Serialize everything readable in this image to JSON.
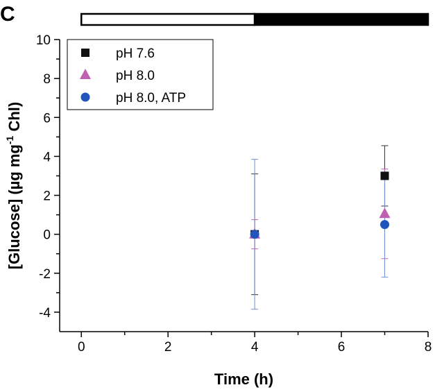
{
  "panel_label": "C",
  "chart_data": {
    "type": "scatter",
    "xlabel": "Time (h)",
    "ylabel_main": "[Glucose] (µg mg",
    "ylabel_sup": "-1",
    "ylabel_tail": " Chl)",
    "xlim": [
      -0.5,
      8
    ],
    "ylim": [
      -5,
      10
    ],
    "x_ticks": [
      0,
      2,
      4,
      6,
      8
    ],
    "y_ticks": [
      -4,
      -2,
      0,
      2,
      4,
      6,
      8,
      10
    ],
    "light_dark_bar": {
      "light_from": 0,
      "light_to": 4,
      "dark_from": 4,
      "dark_to": 8
    },
    "legend_position": "top-left",
    "series": [
      {
        "name": "pH 7.6",
        "marker": "square",
        "color": "#111111",
        "errcolor": "#333333",
        "points": [
          {
            "x": 4,
            "y": 0.0,
            "err": 3.1
          },
          {
            "x": 7,
            "y": 3.0,
            "err": 1.55
          }
        ]
      },
      {
        "name": "pH 8.0",
        "marker": "triangle",
        "color": "#c060b0",
        "errcolor": "#c060b0",
        "points": [
          {
            "x": 4,
            "y": 0.0,
            "err": 0.75
          },
          {
            "x": 7,
            "y": 1.05,
            "err": 2.3
          }
        ]
      },
      {
        "name": "pH 8.0, ATP",
        "marker": "circle",
        "color": "#2255bb",
        "errcolor": "#6f8fd6",
        "points": [
          {
            "x": 4,
            "y": 0.0,
            "err": 3.85
          },
          {
            "x": 7,
            "y": 0.5,
            "err": 2.7
          }
        ]
      }
    ]
  }
}
